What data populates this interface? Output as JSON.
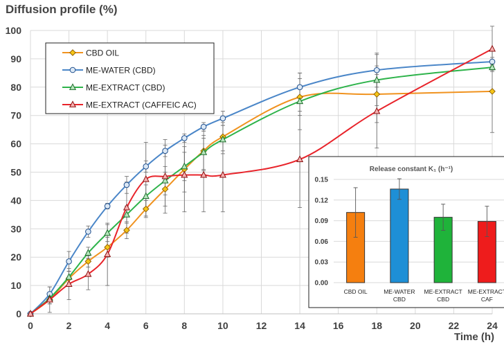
{
  "chart_data": [
    {
      "type": "line",
      "title": "",
      "ylabel": "Diffusion profile (%)",
      "xlabel": "Time (h)",
      "xlim": [
        0,
        24
      ],
      "ylim": [
        0,
        100
      ],
      "x_ticks": [
        0,
        2,
        4,
        6,
        8,
        10,
        12,
        14,
        16,
        18,
        20,
        22,
        24
      ],
      "y_ticks": [
        0,
        10,
        20,
        30,
        40,
        50,
        60,
        70,
        80,
        90,
        100
      ],
      "grid": "both",
      "legend_position": "top-left",
      "series": [
        {
          "name": "CBD OIL",
          "color": "#f0921e",
          "marker": "diamond",
          "x": [
            0,
            1,
            2,
            3,
            4,
            5,
            6,
            7,
            8,
            9,
            10,
            14,
            18,
            24
          ],
          "y": [
            0,
            5,
            12.5,
            18.5,
            23.5,
            29.5,
            37,
            44,
            51,
            57.5,
            62.5,
            76.5,
            77.5,
            78.5
          ],
          "err": [
            0,
            1.5,
            2.5,
            2,
            3.5,
            3,
            3,
            6,
            8,
            7,
            5,
            6.5,
            10,
            14.5
          ]
        },
        {
          "name": "ME-WATER (CBD)",
          "color": "#4a86c8",
          "marker": "circle",
          "x": [
            0,
            1,
            2,
            3,
            4,
            5,
            6,
            7,
            8,
            9,
            10,
            14,
            18,
            24
          ],
          "y": [
            0,
            7,
            18.5,
            29,
            38,
            45.5,
            52,
            57.5,
            62,
            66,
            69,
            80,
            86,
            89
          ],
          "err": [
            0,
            2.5,
            3.5,
            2,
            1,
            3,
            2,
            2,
            1.5,
            1.5,
            2.5,
            5,
            6,
            1.5
          ]
        },
        {
          "name": "ME-EXTRACT (CBD)",
          "color": "#2db34a",
          "marker": "triangle",
          "x": [
            0,
            1,
            2,
            3,
            4,
            5,
            6,
            7,
            8,
            9,
            10,
            14,
            18,
            24
          ],
          "y": [
            0,
            5.5,
            13,
            21.5,
            28.5,
            35,
            41.5,
            47,
            52,
            57,
            61.5,
            75,
            82.5,
            87
          ],
          "err": [
            0,
            2,
            2,
            2,
            3,
            3,
            4,
            5,
            5,
            6,
            5,
            10,
            9,
            1
          ]
        },
        {
          "name": "ME-EXTRACT (CAFFEIC AC)",
          "color": "#e8232a",
          "marker": "triangle",
          "x": [
            0,
            1,
            2,
            3,
            4,
            5,
            6,
            7,
            8,
            9,
            10,
            14,
            18,
            24
          ],
          "y": [
            0,
            5,
            10.5,
            14,
            21,
            37.5,
            47.5,
            48.5,
            49,
            49,
            49,
            54.5,
            71.5,
            93.5
          ],
          "err": [
            0,
            4.5,
            5.5,
            5.5,
            11,
            9,
            13,
            13,
            13,
            13,
            13,
            17,
            13,
            8
          ]
        }
      ]
    },
    {
      "type": "bar",
      "title": "Release constant K₁ (h⁻¹)",
      "categories": [
        "CBD OIL",
        "ME-WATER CBD",
        "ME-EXTRACT CBD",
        "ME-EXTRACT CAF"
      ],
      "category_lines": [
        [
          "CBD OIL"
        ],
        [
          "ME-WATER",
          "CBD"
        ],
        [
          "ME-EXTRACT",
          "CBD"
        ],
        [
          "ME-EXTRACT",
          "CAF"
        ]
      ],
      "values": [
        0.102,
        0.136,
        0.095,
        0.089
      ],
      "errors": [
        0.036,
        0.015,
        0.019,
        0.022
      ],
      "colors": [
        "#f57f0f",
        "#1e8fd6",
        "#1fb33a",
        "#ee1c1c"
      ],
      "ylim": [
        0,
        0.15
      ],
      "y_ticks": [
        "0.00",
        "0.03",
        "0.06",
        "0.09",
        "0.12",
        "0.15"
      ],
      "grid": "horizontal"
    }
  ]
}
